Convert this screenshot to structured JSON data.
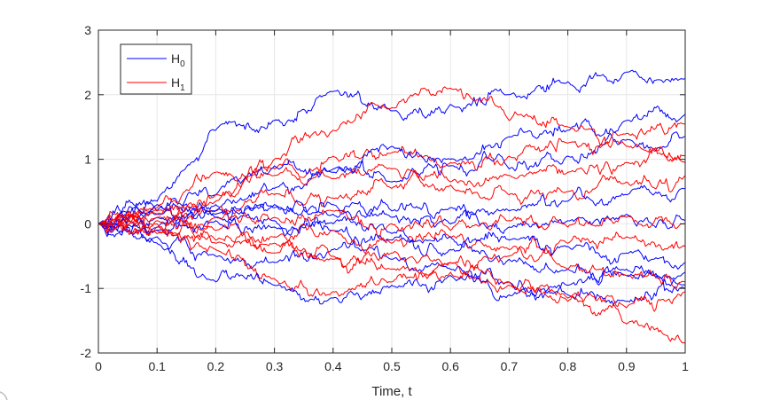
{
  "chart_data": {
    "type": "line",
    "title": "",
    "xlabel": "Time, t",
    "ylabel": "",
    "xlim": [
      0,
      1
    ],
    "ylim": [
      -2,
      3
    ],
    "grid": true,
    "legend_position": "top-left",
    "x_ticks": [
      "0",
      "0.1",
      "0.2",
      "0.3",
      "0.4",
      "0.5",
      "0.6",
      "0.7",
      "0.8",
      "0.9",
      "1"
    ],
    "y_ticks": [
      "-2",
      "-1",
      "0",
      "1",
      "2",
      "3"
    ],
    "legend": [
      {
        "base": "H",
        "sub": "0",
        "color": "#0000FF"
      },
      {
        "base": "H",
        "sub": "1",
        "color": "#FF0000"
      }
    ],
    "x": [
      0,
      0.1,
      0.2,
      0.3,
      0.4,
      0.5,
      0.6,
      0.7,
      0.8,
      0.9,
      1.0
    ],
    "series": [
      {
        "group": "H0",
        "color": "#0000FF",
        "values": [
          0,
          0.35,
          1.45,
          1.6,
          2.05,
          1.75,
          1.85,
          2.0,
          2.2,
          2.35,
          2.25
        ]
      },
      {
        "group": "H0",
        "color": "#0000FF",
        "values": [
          0,
          0.3,
          0.45,
          0.9,
          0.85,
          1.2,
          1.0,
          1.35,
          1.45,
          1.6,
          1.7
        ]
      },
      {
        "group": "H0",
        "color": "#0000FF",
        "values": [
          0,
          0.15,
          0.3,
          0.55,
          0.8,
          0.65,
          0.9,
          0.85,
          1.05,
          1.3,
          1.35
        ]
      },
      {
        "group": "H0",
        "color": "#0000FF",
        "values": [
          0,
          -0.05,
          0.2,
          0.3,
          0.3,
          0.2,
          0.25,
          0.2,
          0.35,
          0.45,
          0.55
        ]
      },
      {
        "group": "H0",
        "color": "#0000FF",
        "values": [
          0,
          0.1,
          0.15,
          0.25,
          0.15,
          0.1,
          0.0,
          -0.05,
          0.05,
          0.15,
          0.05
        ]
      },
      {
        "group": "H0",
        "color": "#0000FF",
        "values": [
          0,
          -0.1,
          0.05,
          -0.05,
          0.0,
          -0.15,
          -0.2,
          -0.25,
          -0.35,
          -0.45,
          -0.6
        ]
      },
      {
        "group": "H0",
        "color": "#0000FF",
        "values": [
          0,
          0.2,
          0.1,
          0.05,
          -0.1,
          -0.25,
          -0.4,
          -0.55,
          -0.7,
          -0.8,
          -0.75
        ]
      },
      {
        "group": "H0",
        "color": "#0000FF",
        "values": [
          0,
          -0.3,
          -0.9,
          -0.95,
          -1.15,
          -0.95,
          -0.8,
          -1.1,
          -0.95,
          -0.7,
          -1.0
        ]
      },
      {
        "group": "H0",
        "color": "#0000FF",
        "values": [
          0,
          -0.2,
          -0.5,
          -0.6,
          -0.4,
          -0.55,
          -0.7,
          -0.9,
          -1.1,
          -1.2,
          -0.95
        ]
      },
      {
        "group": "H1",
        "color": "#FF0000",
        "values": [
          0,
          0.2,
          0.35,
          1.0,
          1.45,
          1.8,
          2.1,
          1.6,
          1.5,
          1.2,
          0.95
        ]
      },
      {
        "group": "H1",
        "color": "#FF0000",
        "values": [
          0,
          0.25,
          0.8,
          0.85,
          1.05,
          1.1,
          0.95,
          1.05,
          1.25,
          1.4,
          1.55
        ]
      },
      {
        "group": "H1",
        "color": "#FF0000",
        "values": [
          0,
          0.1,
          0.45,
          0.75,
          0.7,
          0.85,
          0.65,
          0.75,
          0.8,
          0.95,
          1.05
        ]
      },
      {
        "group": "H1",
        "color": "#FF0000",
        "values": [
          0,
          0.15,
          0.2,
          0.45,
          0.4,
          0.55,
          0.6,
          0.45,
          0.5,
          0.65,
          0.75
        ]
      },
      {
        "group": "H1",
        "color": "#FF0000",
        "values": [
          0,
          -0.05,
          0.1,
          0.1,
          0.2,
          0.0,
          -0.1,
          0.05,
          -0.05,
          0.1,
          0.0
        ]
      },
      {
        "group": "H1",
        "color": "#FF0000",
        "values": [
          0,
          0.05,
          -0.1,
          -0.2,
          -0.1,
          -0.3,
          -0.2,
          -0.4,
          -0.3,
          -0.2,
          -0.35
        ]
      },
      {
        "group": "H1",
        "color": "#FF0000",
        "values": [
          0,
          -0.15,
          -0.3,
          -0.45,
          -0.55,
          -0.45,
          -0.6,
          -0.5,
          -0.7,
          -0.8,
          -0.9
        ]
      },
      {
        "group": "H1",
        "color": "#FF0000",
        "values": [
          0,
          -0.1,
          -0.4,
          -0.85,
          -1.05,
          -0.9,
          -0.75,
          -0.95,
          -1.15,
          -1.3,
          -1.05
        ]
      },
      {
        "group": "H1",
        "color": "#FF0000",
        "values": [
          0,
          0.0,
          -0.25,
          -0.3,
          -0.5,
          -0.7,
          -0.6,
          -0.9,
          -1.2,
          -1.55,
          -1.85
        ]
      }
    ]
  }
}
